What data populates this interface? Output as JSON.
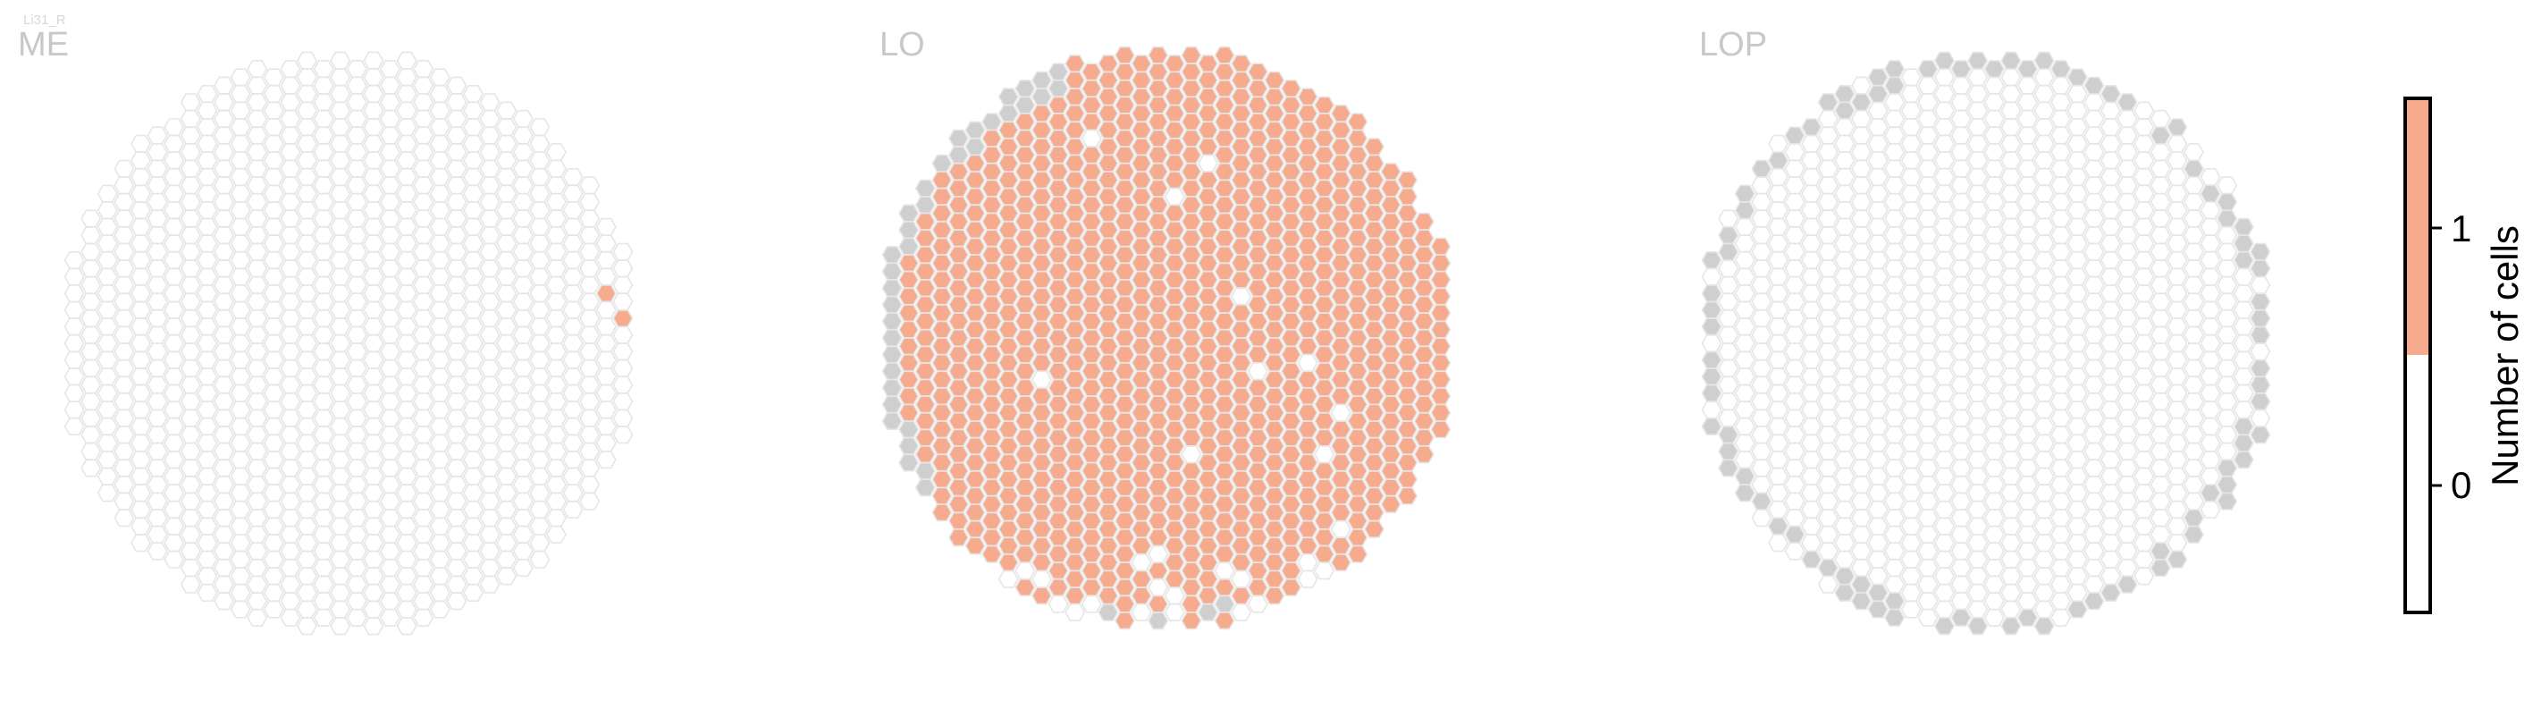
{
  "chart_data": {
    "type": "heatmap",
    "cell_id": "Li31_R",
    "panels": [
      {
        "title": "ME",
        "counts": {
          "1": [
            [
              33,
              14
            ],
            [
              34,
              16
            ]
          ]
        },
        "gray": []
      },
      {
        "title": "LO",
        "counts": {
          "1": "all columns except listed exceptions"
        },
        "exceptions_zero": [
          [
            13,
            5
          ],
          [
            20,
            7
          ],
          [
            18,
            9
          ],
          [
            22,
            15
          ],
          [
            23,
            19
          ],
          [
            26,
            19
          ],
          [
            19,
            24
          ],
          [
            10,
            20
          ],
          [
            27,
            24
          ],
          [
            28,
            22
          ],
          [
            28,
            29
          ],
          [
            17,
            30
          ],
          [
            30,
            32
          ],
          [
            33,
            5
          ],
          [
            35,
            25
          ]
        ],
        "gray": "outer ring segments (upper-left, left, bottom)"
      },
      {
        "title": "LOP",
        "counts": {},
        "gray": "scattered outer-ring columns"
      }
    ],
    "colorbar": {
      "label": "Number of cells",
      "ticks": [
        "0",
        "1"
      ],
      "colors": {
        "0": "#ffffff",
        "1": "#f6ab8f"
      }
    },
    "colors": {
      "empty_stroke": "#e6e6e6",
      "filled": "#f6ab8f",
      "gray": "#cfcfcf"
    }
  }
}
